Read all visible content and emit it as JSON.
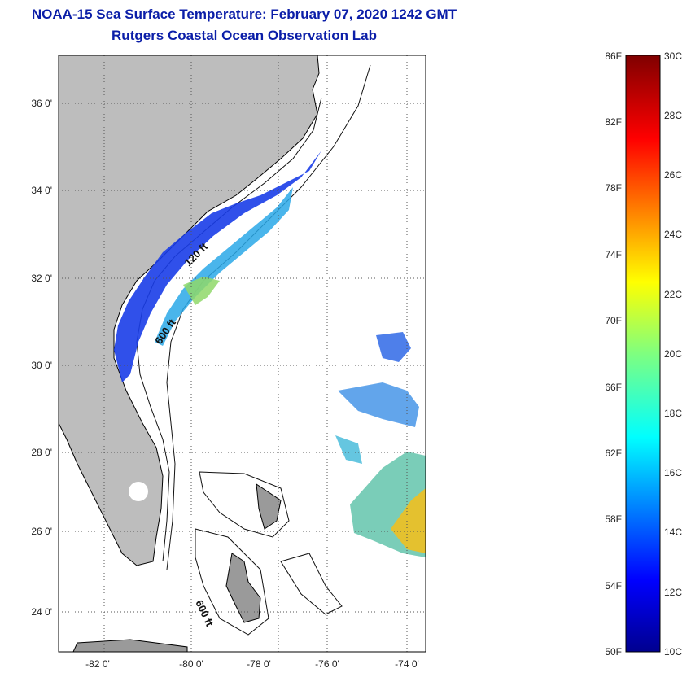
{
  "header": {
    "title": "NOAA-15 Sea Surface Temperature:  February 07, 2020 1242 GMT",
    "subtitle": "Rutgers Coastal Ocean Observation Lab"
  },
  "map": {
    "lat_ticks": [
      "36 0'",
      "34 0'",
      "32 0'",
      "30 0'",
      "28 0'",
      "26 0'",
      "24 0'"
    ],
    "lon_ticks": [
      "-82 0'",
      "-80 0'",
      "-78 0'",
      "-76 0'",
      "-74 0'"
    ],
    "contour_labels": [
      "120 ft",
      "600 ft",
      "600 ft"
    ],
    "colors": {
      "land": "#bdbdbd",
      "frame": "#000000",
      "grid": "#555555"
    }
  },
  "colorbar": {
    "fahrenheit_labels": [
      "86F",
      "82F",
      "78F",
      "74F",
      "70F",
      "66F",
      "62F",
      "58F",
      "54F",
      "50F"
    ],
    "celsius_labels": [
      "30C",
      "28C",
      "26C",
      "24C",
      "22C",
      "20C",
      "18C",
      "16C",
      "14C",
      "12C",
      "10C"
    ]
  }
}
